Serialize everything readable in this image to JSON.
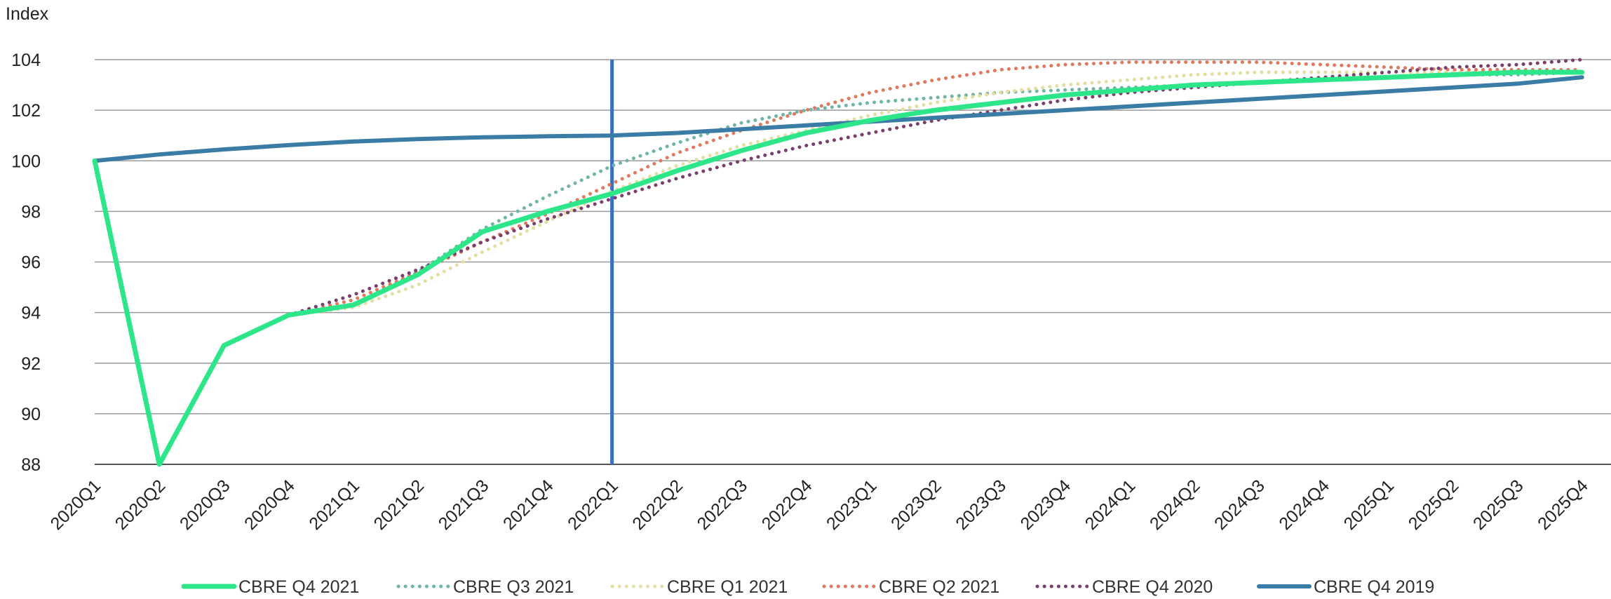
{
  "chart_data": {
    "type": "line",
    "ylabel": "Index",
    "ylim": [
      88,
      104
    ],
    "yticks": [
      88,
      90,
      92,
      94,
      96,
      98,
      100,
      102,
      104
    ],
    "grid": true,
    "legend_position": "bottom",
    "categories": [
      "2020Q1",
      "2020Q2",
      "2020Q3",
      "2020Q4",
      "2021Q1",
      "2021Q2",
      "2021Q3",
      "2021Q4",
      "2022Q1",
      "2022Q2",
      "2022Q3",
      "2022Q4",
      "2023Q1",
      "2023Q2",
      "2023Q3",
      "2023Q4",
      "2024Q1",
      "2024Q2",
      "2024Q3",
      "2024Q4",
      "2025Q1",
      "2025Q2",
      "2025Q3",
      "2025Q4"
    ],
    "reference_line": {
      "at": "2022Q1",
      "color": "#3a6fc4"
    },
    "series": [
      {
        "name": "CBRE Q4 2021",
        "color": "#2ee68a",
        "style": "solid",
        "width": 7,
        "values": [
          100,
          88.0,
          92.7,
          93.9,
          94.3,
          95.5,
          97.2,
          98.0,
          98.7,
          99.6,
          100.4,
          101.1,
          101.6,
          102.0,
          102.3,
          102.6,
          102.8,
          103.0,
          103.1,
          103.2,
          103.3,
          103.4,
          103.5,
          103.5
        ]
      },
      {
        "name": "CBRE Q3 2021",
        "color": "#6fb5a8",
        "style": "dotted",
        "width": 5,
        "values": [
          100,
          88.0,
          92.7,
          93.9,
          94.3,
          95.6,
          97.3,
          98.6,
          99.8,
          100.7,
          101.5,
          102.0,
          102.3,
          102.5,
          102.7,
          102.8,
          102.9,
          103.0,
          103.1,
          103.2,
          103.3,
          103.4,
          103.4,
          103.5
        ]
      },
      {
        "name": "CBRE Q1 2021",
        "color": "#e2dfa0",
        "style": "dotted",
        "width": 5,
        "values": [
          100,
          88.0,
          92.7,
          93.9,
          94.2,
          95.1,
          96.4,
          97.6,
          98.8,
          99.8,
          100.6,
          101.2,
          101.8,
          102.3,
          102.7,
          103.0,
          103.2,
          103.4,
          103.5,
          103.5,
          103.5,
          103.5,
          103.5,
          103.5
        ]
      },
      {
        "name": "CBRE Q2 2021",
        "color": "#e07a5f",
        "style": "dotted",
        "width": 5,
        "values": [
          100,
          88.0,
          92.7,
          93.9,
          94.5,
          95.6,
          96.8,
          97.9,
          99.1,
          100.3,
          101.2,
          102.0,
          102.7,
          103.2,
          103.6,
          103.8,
          103.9,
          103.9,
          103.9,
          103.8,
          103.7,
          103.6,
          103.6,
          103.6
        ]
      },
      {
        "name": "CBRE Q4 2020",
        "color": "#7b3f6e",
        "style": "dotted",
        "width": 5,
        "values": [
          100,
          88.0,
          92.7,
          93.9,
          94.7,
          95.7,
          96.8,
          97.7,
          98.5,
          99.3,
          100.0,
          100.6,
          101.1,
          101.6,
          102.0,
          102.4,
          102.7,
          102.9,
          103.1,
          103.3,
          103.5,
          103.7,
          103.8,
          104.0
        ]
      },
      {
        "name": "CBRE Q4 2019",
        "color": "#3a7ca5",
        "style": "solid",
        "width": 6,
        "values": [
          100,
          100.25,
          100.45,
          100.62,
          100.76,
          100.86,
          100.93,
          100.97,
          101.0,
          101.1,
          101.25,
          101.4,
          101.55,
          101.7,
          101.85,
          102.0,
          102.15,
          102.3,
          102.45,
          102.6,
          102.75,
          102.9,
          103.05,
          103.3
        ]
      }
    ]
  }
}
